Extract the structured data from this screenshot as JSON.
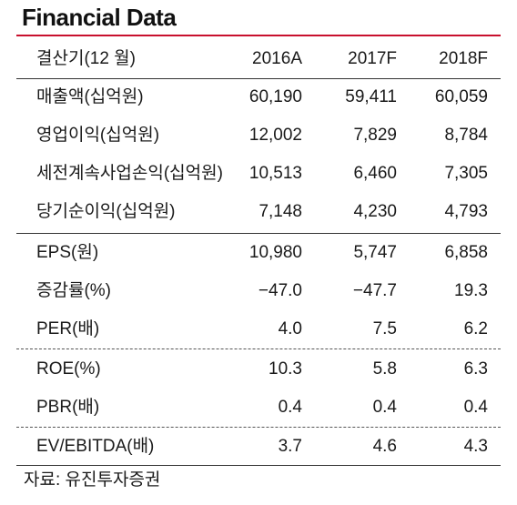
{
  "title": "Financial Data",
  "header": {
    "label": "결산기(12 월)",
    "cols": [
      "2016A",
      "2017F",
      "2018F"
    ]
  },
  "rows": [
    {
      "label": "매출액(십억원)",
      "values": [
        "60,190",
        "59,411",
        "60,059"
      ]
    },
    {
      "label": "영업이익(십억원)",
      "values": [
        "12,002",
        "7,829",
        "8,784"
      ]
    },
    {
      "label": "세전계속사업손익(십억원)",
      "values": [
        "10,513",
        "6,460",
        "7,305"
      ]
    },
    {
      "label": "당기순이익(십억원)",
      "values": [
        "7,148",
        "4,230",
        "4,793"
      ]
    },
    {
      "label": "EPS(원)",
      "values": [
        "10,980",
        "5,747",
        "6,858"
      ]
    },
    {
      "label": "증감률(%)",
      "values": [
        "−47.0",
        "−47.7",
        "19.3"
      ]
    },
    {
      "label": "PER(배)",
      "values": [
        "4.0",
        "7.5",
        "6.2"
      ]
    },
    {
      "label": "ROE(%)",
      "values": [
        "10.3",
        "5.8",
        "6.3"
      ]
    },
    {
      "label": "PBR(배)",
      "values": [
        "0.4",
        "0.4",
        "0.4"
      ]
    },
    {
      "label": "EV/EBITDA(배)",
      "values": [
        "3.7",
        "4.6",
        "4.3"
      ]
    }
  ],
  "footer": "자료:  유진투자증권",
  "colors": {
    "accent": "#c8102e"
  }
}
